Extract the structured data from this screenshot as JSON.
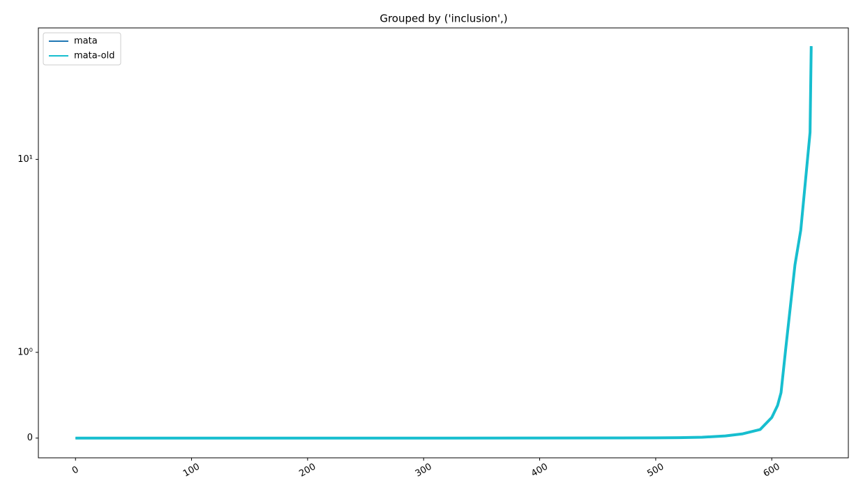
{
  "chart_data": {
    "type": "line",
    "title": "Grouped by ('inclusion',)",
    "x": [
      0,
      100,
      200,
      300,
      400,
      500,
      520,
      540,
      560,
      575,
      590,
      600,
      605,
      608,
      612,
      616,
      620,
      625,
      630,
      633,
      634
    ],
    "series": [
      {
        "name": "mata",
        "color": "#1f77b4",
        "values": [
          0,
          0,
          0,
          0,
          0.001,
          0.003,
          0.005,
          0.01,
          0.025,
          0.05,
          0.1,
          0.24,
          0.38,
          0.53,
          1.04,
          1.72,
          2.84,
          4.3,
          8.9,
          13.8,
          38.6
        ]
      },
      {
        "name": "mata-old",
        "color": "#17becf",
        "values": [
          0,
          0,
          0,
          0,
          0.001,
          0.003,
          0.005,
          0.01,
          0.025,
          0.05,
          0.1,
          0.24,
          0.38,
          0.53,
          1.04,
          1.72,
          2.84,
          4.3,
          8.9,
          13.8,
          38.6
        ]
      }
    ],
    "xlim": [
      -32,
      666
    ],
    "xticks": [
      0,
      100,
      200,
      300,
      400,
      500,
      600
    ],
    "ylim": [
      -0.23,
      48
    ],
    "yticks": [
      0,
      {
        "value": 1,
        "label": "10⁰"
      },
      {
        "value": 10,
        "label": "10¹"
      }
    ],
    "yscale": "symlog",
    "linthresh": 1,
    "linscale": 0.4,
    "legend": "upper-left"
  }
}
